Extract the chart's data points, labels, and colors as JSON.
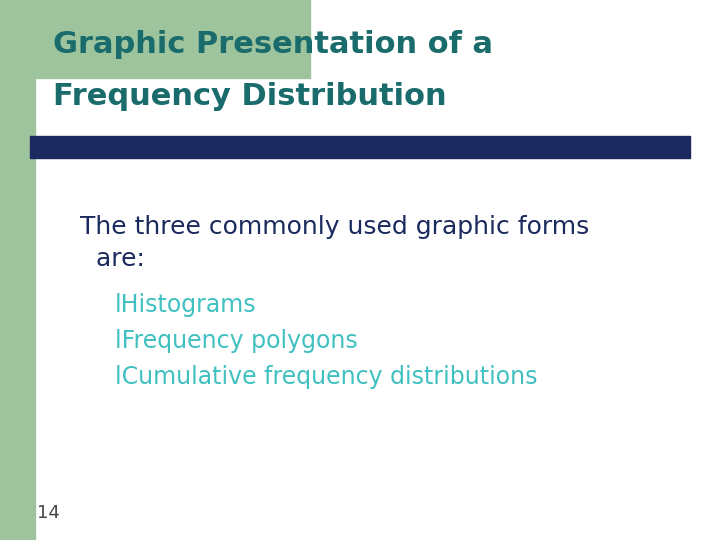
{
  "title_line1": "Graphic Presentation of a",
  "title_line2": "Frequency Distribution",
  "title_color": "#1a6b6b",
  "title_fontsize": 22,
  "bar_color": "#1a2a5e",
  "body_text_line1": "The three commonly used graphic forms",
  "body_text_line2": "  are:",
  "body_color": "#1a2a5e",
  "body_fontsize": 18,
  "bullet_color": "#40c0c0",
  "bullet_items": [
    "lHistograms",
    "lFrequency polygons",
    "lCumulative frequency distributions"
  ],
  "bullet_fontsize": 17,
  "page_number": "14",
  "page_number_color": "#444444",
  "page_number_fontsize": 13,
  "bg_color": "#ffffff",
  "left_accent_color": "#9dc49d",
  "top_accent_color": "#9dc49d"
}
